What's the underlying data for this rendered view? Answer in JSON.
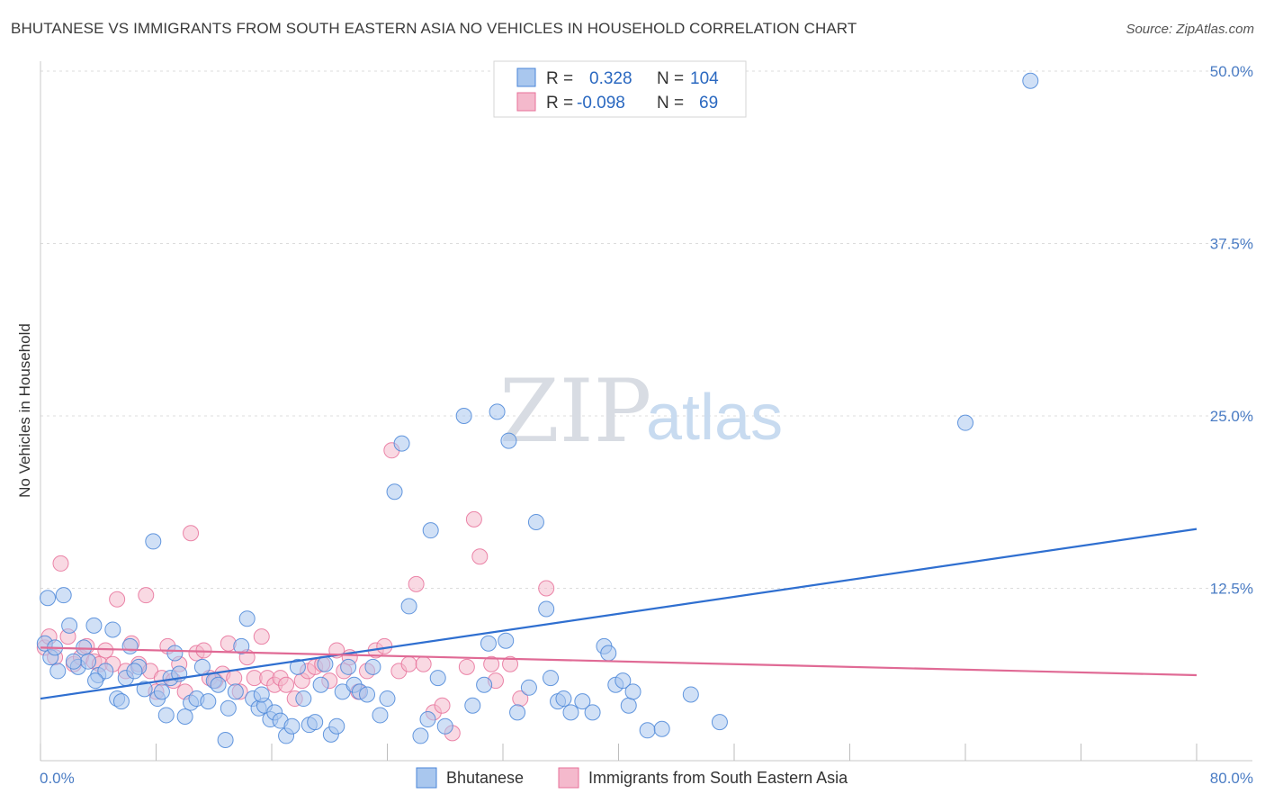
{
  "title": "BHUTANESE VS IMMIGRANTS FROM SOUTH EASTERN ASIA NO VEHICLES IN HOUSEHOLD CORRELATION CHART",
  "source": "Source: ZipAtlas.com",
  "watermark": {
    "zip": "ZIP",
    "atlas": "atlas"
  },
  "colors": {
    "blue": "#4a86d8",
    "blue_fill": "#a9c7ee",
    "pink": "#e7719a",
    "pink_fill": "#f4b9cc",
    "blue_line": "#2f6fd0",
    "pink_line": "#e06a95"
  },
  "legend": {
    "rows": [
      {
        "r_label": "R =",
        "r_value": "0.328",
        "n_label": "N =",
        "n_value": "104"
      },
      {
        "r_label": "R =",
        "r_value": "-0.098",
        "n_label": "N =",
        "n_value": "69"
      }
    ]
  },
  "chart_data": {
    "type": "scatter",
    "ylabel": "No Vehicles in Household",
    "xlim": [
      0,
      80
    ],
    "ylim": [
      0,
      50
    ],
    "x_tick_labels": [
      "0.0%",
      "80.0%"
    ],
    "y_ticks": [
      12.5,
      25.0,
      37.5,
      50.0
    ],
    "y_tick_labels": [
      "12.5%",
      "25.0%",
      "37.5%",
      "50.0%"
    ],
    "grid": true,
    "legend_position": "top-center",
    "series": [
      {
        "name": "Bhutanese",
        "trend": [
          [
            0,
            4.5
          ],
          [
            80,
            16.8
          ]
        ],
        "points": [
          [
            0.3,
            8.5
          ],
          [
            0.5,
            11.8
          ],
          [
            0.7,
            7.5
          ],
          [
            1.0,
            8.2
          ],
          [
            1.2,
            6.5
          ],
          [
            1.6,
            12.0
          ],
          [
            2.0,
            9.8
          ],
          [
            2.6,
            6.8
          ],
          [
            3.0,
            8.2
          ],
          [
            3.3,
            7.2
          ],
          [
            3.7,
            9.8
          ],
          [
            4.0,
            6.2
          ],
          [
            4.5,
            6.5
          ],
          [
            5.0,
            9.5
          ],
          [
            5.3,
            4.5
          ],
          [
            5.6,
            4.3
          ],
          [
            5.9,
            6.0
          ],
          [
            6.2,
            8.3
          ],
          [
            6.8,
            6.8
          ],
          [
            7.2,
            5.2
          ],
          [
            7.8,
            15.9
          ],
          [
            8.1,
            4.5
          ],
          [
            8.4,
            5.0
          ],
          [
            8.7,
            3.3
          ],
          [
            9.0,
            6.0
          ],
          [
            9.3,
            7.8
          ],
          [
            9.6,
            6.3
          ],
          [
            10.0,
            3.2
          ],
          [
            10.4,
            4.2
          ],
          [
            10.8,
            4.5
          ],
          [
            11.2,
            6.8
          ],
          [
            11.6,
            4.3
          ],
          [
            12.0,
            5.8
          ],
          [
            12.3,
            5.5
          ],
          [
            12.8,
            1.5
          ],
          [
            13.0,
            3.8
          ],
          [
            13.5,
            5.0
          ],
          [
            13.9,
            8.3
          ],
          [
            14.3,
            10.3
          ],
          [
            14.7,
            4.5
          ],
          [
            15.1,
            3.8
          ],
          [
            15.5,
            4.0
          ],
          [
            15.9,
            3.0
          ],
          [
            16.2,
            3.5
          ],
          [
            16.6,
            2.9
          ],
          [
            17.0,
            1.8
          ],
          [
            17.4,
            2.5
          ],
          [
            17.8,
            6.8
          ],
          [
            18.2,
            4.5
          ],
          [
            18.6,
            2.6
          ],
          [
            19.0,
            2.8
          ],
          [
            19.4,
            5.5
          ],
          [
            19.7,
            7.0
          ],
          [
            20.1,
            1.9
          ],
          [
            20.5,
            2.5
          ],
          [
            20.9,
            5.0
          ],
          [
            21.3,
            6.8
          ],
          [
            21.7,
            5.5
          ],
          [
            22.1,
            5.0
          ],
          [
            22.6,
            4.8
          ],
          [
            23.0,
            6.8
          ],
          [
            23.5,
            3.3
          ],
          [
            24.0,
            4.5
          ],
          [
            24.5,
            19.5
          ],
          [
            25.0,
            23.0
          ],
          [
            25.5,
            11.2
          ],
          [
            26.3,
            1.8
          ],
          [
            27.0,
            16.7
          ],
          [
            27.5,
            6.0
          ],
          [
            28.0,
            2.5
          ],
          [
            29.3,
            25.0
          ],
          [
            29.9,
            4.0
          ],
          [
            30.7,
            5.5
          ],
          [
            31.0,
            8.5
          ],
          [
            31.6,
            25.3
          ],
          [
            32.2,
            8.7
          ],
          [
            32.4,
            23.2
          ],
          [
            33.0,
            3.5
          ],
          [
            33.8,
            5.3
          ],
          [
            34.3,
            17.3
          ],
          [
            35.0,
            11.0
          ],
          [
            35.3,
            6.0
          ],
          [
            35.8,
            4.3
          ],
          [
            36.2,
            4.5
          ],
          [
            36.7,
            3.5
          ],
          [
            37.5,
            4.3
          ],
          [
            38.2,
            3.5
          ],
          [
            39.0,
            8.3
          ],
          [
            39.3,
            7.8
          ],
          [
            39.8,
            5.5
          ],
          [
            40.3,
            5.8
          ],
          [
            40.7,
            4.0
          ],
          [
            41.0,
            5.0
          ],
          [
            42.0,
            2.2
          ],
          [
            43.0,
            2.3
          ],
          [
            45.0,
            4.8
          ],
          [
            47.0,
            2.8
          ],
          [
            64.0,
            24.5
          ],
          [
            68.5,
            49.3
          ],
          [
            6.5,
            6.5
          ],
          [
            2.3,
            7.2
          ],
          [
            3.8,
            5.8
          ],
          [
            15.3,
            4.8
          ],
          [
            26.8,
            3.0
          ]
        ]
      },
      {
        "name": "Immigrants from South Eastern Asia",
        "trend": [
          [
            0,
            8.2
          ],
          [
            80,
            6.2
          ]
        ],
        "points": [
          [
            0.3,
            8.2
          ],
          [
            0.6,
            9.0
          ],
          [
            1.0,
            7.5
          ],
          [
            1.4,
            14.3
          ],
          [
            1.9,
            9.0
          ],
          [
            2.3,
            7.0
          ],
          [
            2.8,
            7.5
          ],
          [
            3.2,
            8.3
          ],
          [
            3.7,
            7.2
          ],
          [
            4.1,
            7.0
          ],
          [
            4.5,
            8.0
          ],
          [
            5.0,
            7.0
          ],
          [
            5.3,
            11.7
          ],
          [
            5.9,
            6.5
          ],
          [
            6.3,
            8.5
          ],
          [
            6.8,
            7.0
          ],
          [
            7.3,
            12.0
          ],
          [
            7.6,
            6.5
          ],
          [
            8.0,
            5.0
          ],
          [
            8.4,
            6.0
          ],
          [
            8.8,
            8.3
          ],
          [
            9.2,
            5.8
          ],
          [
            9.6,
            7.0
          ],
          [
            10.0,
            5.0
          ],
          [
            10.4,
            16.5
          ],
          [
            10.8,
            7.8
          ],
          [
            11.3,
            8.0
          ],
          [
            11.7,
            6.0
          ],
          [
            12.1,
            5.8
          ],
          [
            12.6,
            6.3
          ],
          [
            13.0,
            8.5
          ],
          [
            13.4,
            6.0
          ],
          [
            13.8,
            5.0
          ],
          [
            14.3,
            7.5
          ],
          [
            14.8,
            6.0
          ],
          [
            15.3,
            9.0
          ],
          [
            15.7,
            6.0
          ],
          [
            16.2,
            5.5
          ],
          [
            16.6,
            6.0
          ],
          [
            17.0,
            5.5
          ],
          [
            17.6,
            4.5
          ],
          [
            18.1,
            5.8
          ],
          [
            18.5,
            6.5
          ],
          [
            19.0,
            6.8
          ],
          [
            19.5,
            7.0
          ],
          [
            20.0,
            5.8
          ],
          [
            20.5,
            8.0
          ],
          [
            21.0,
            6.5
          ],
          [
            21.4,
            7.5
          ],
          [
            22.0,
            5.0
          ],
          [
            22.6,
            6.5
          ],
          [
            23.2,
            8.0
          ],
          [
            23.8,
            8.3
          ],
          [
            24.3,
            22.5
          ],
          [
            24.8,
            6.5
          ],
          [
            25.5,
            7.0
          ],
          [
            26.0,
            12.8
          ],
          [
            26.5,
            7.0
          ],
          [
            27.2,
            3.5
          ],
          [
            27.8,
            4.0
          ],
          [
            28.5,
            2.0
          ],
          [
            29.5,
            6.8
          ],
          [
            30.0,
            17.5
          ],
          [
            30.4,
            14.8
          ],
          [
            31.2,
            7.0
          ],
          [
            31.5,
            5.8
          ],
          [
            32.5,
            7.0
          ],
          [
            33.2,
            4.5
          ],
          [
            35.0,
            12.5
          ]
        ]
      }
    ]
  },
  "bottom_legend": [
    {
      "label": "Bhutanese"
    },
    {
      "label": "Immigrants from South Eastern Asia"
    }
  ]
}
